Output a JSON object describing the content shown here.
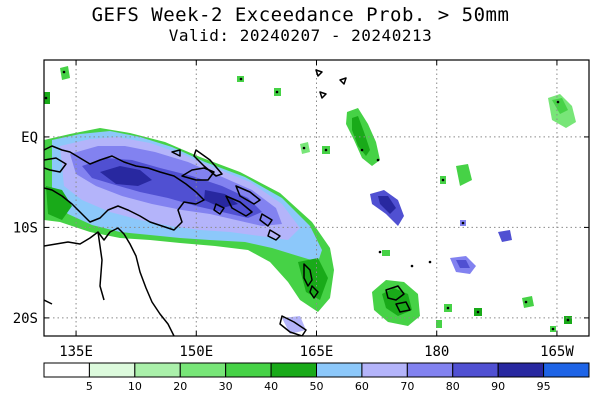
{
  "title": "GEFS Week-2 Exceedance Prob. > 50mm",
  "subtitle": "Valid: 20240207 - 20240213",
  "map": {
    "lon_range": [
      131,
      199
    ],
    "lat_range": [
      -22,
      8.5
    ],
    "lon_ticks": [
      {
        "value": 135,
        "label": "135E"
      },
      {
        "value": 150,
        "label": "150E"
      },
      {
        "value": 165,
        "label": "165E"
      },
      {
        "value": 180,
        "label": "180"
      },
      {
        "value": 195,
        "label": "165W"
      }
    ],
    "lat_ticks": [
      {
        "value": 0,
        "label": "EQ"
      },
      {
        "value": -10,
        "label": "10S"
      },
      {
        "value": -20,
        "label": "20S"
      }
    ],
    "gridlines": "dotted"
  },
  "colorbar": {
    "bins": [
      {
        "label": "5",
        "color": "#ffffff"
      },
      {
        "label": "10",
        "color": "#dcfadc"
      },
      {
        "label": "20",
        "color": "#aaf0aa"
      },
      {
        "label": "30",
        "color": "#78e678"
      },
      {
        "label": "40",
        "color": "#46d246"
      },
      {
        "label": "50",
        "color": "#19aa19"
      },
      {
        "label": "60",
        "color": "#8cc8fa"
      },
      {
        "label": "70",
        "color": "#b4b4fa"
      },
      {
        "label": "80",
        "color": "#8282f0"
      },
      {
        "label": "90",
        "color": "#5050d2"
      },
      {
        "label": "95",
        "color": "#2828a0"
      },
      {
        "label": "",
        "color": "#1e64e6"
      }
    ]
  }
}
